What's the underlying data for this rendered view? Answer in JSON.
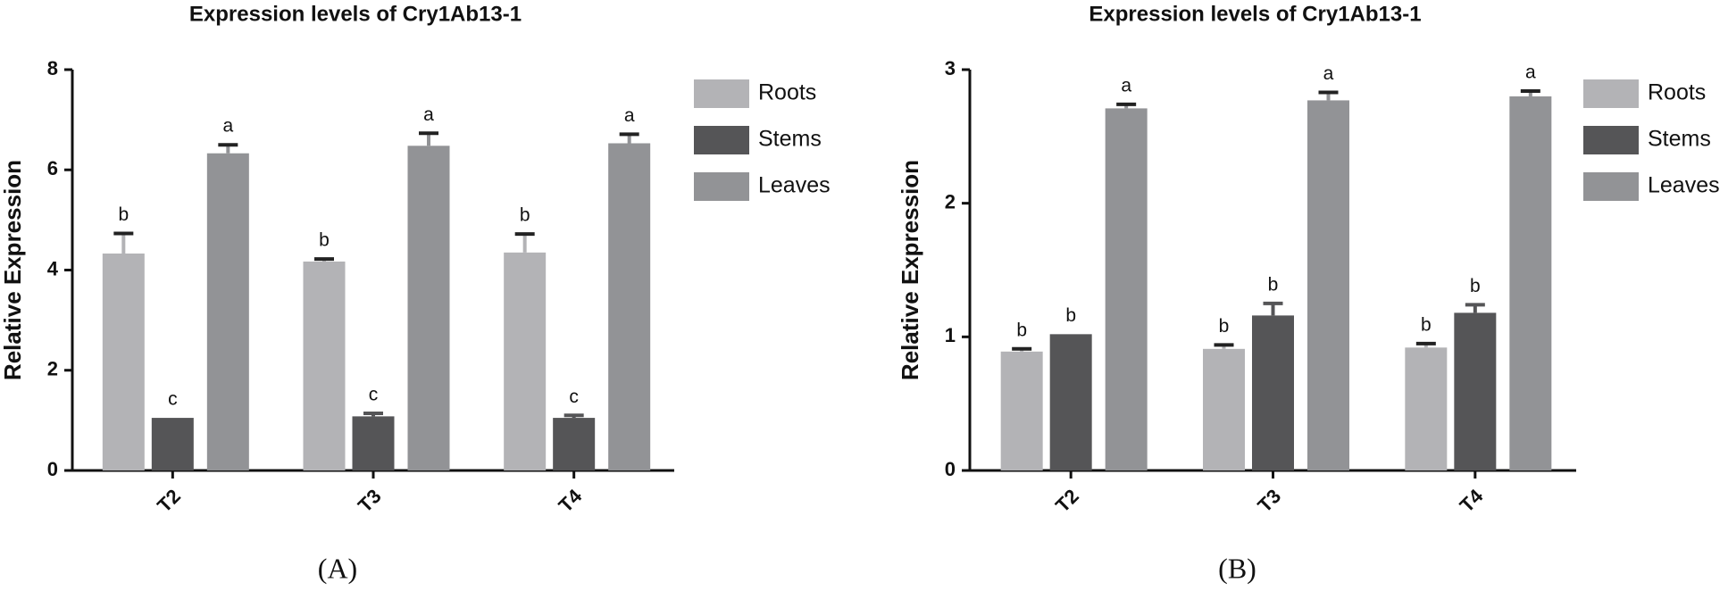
{
  "chart_data": [
    {
      "type": "bar",
      "title": "Expression levels of Cry1Ab13-1",
      "panel_label": "(A)",
      "y_label": "Relative Expression",
      "categories": [
        "T2",
        "T3",
        "T4"
      ],
      "series": [
        {
          "name": "Roots",
          "color": "#b3b3b6",
          "values": [
            4.33,
            4.17,
            4.35
          ],
          "errors": [
            0.4,
            0.05,
            0.37
          ],
          "letters": [
            "b",
            "b",
            "b"
          ]
        },
        {
          "name": "Stems",
          "color": "#555557",
          "values": [
            1.05,
            1.08,
            1.05
          ],
          "errors": [
            0,
            0.06,
            0.05
          ],
          "letters": [
            "c",
            "c",
            "c"
          ]
        },
        {
          "name": "Leaves",
          "color": "#929396",
          "values": [
            6.33,
            6.48,
            6.53
          ],
          "errors": [
            0.17,
            0.25,
            0.18
          ],
          "letters": [
            "a",
            "a",
            "a"
          ]
        }
      ],
      "ylim": [
        0,
        8
      ],
      "yticks": [
        0,
        2,
        4,
        6,
        8
      ],
      "legend": "right"
    },
    {
      "type": "bar",
      "title": "Expression levels of Cry1Ab13-1",
      "panel_label": "(B)",
      "y_label": "Relative Expression",
      "categories": [
        "T2",
        "T3",
        "T4"
      ],
      "series": [
        {
          "name": "Roots",
          "color": "#b3b3b6",
          "values": [
            0.89,
            0.91,
            0.92
          ],
          "errors": [
            0.02,
            0.03,
            0.03
          ],
          "letters": [
            "b",
            "b",
            "b"
          ]
        },
        {
          "name": "Stems",
          "color": "#555557",
          "values": [
            1.02,
            1.16,
            1.18
          ],
          "errors": [
            0,
            0.09,
            0.06
          ],
          "letters": [
            "b",
            "b",
            "b"
          ]
        },
        {
          "name": "Leaves",
          "color": "#929396",
          "values": [
            2.71,
            2.77,
            2.8
          ],
          "errors": [
            0.03,
            0.06,
            0.04
          ],
          "letters": [
            "a",
            "a",
            "a"
          ]
        }
      ],
      "ylim": [
        0,
        3
      ],
      "yticks": [
        0,
        1,
        2,
        3
      ],
      "legend": "right"
    }
  ]
}
